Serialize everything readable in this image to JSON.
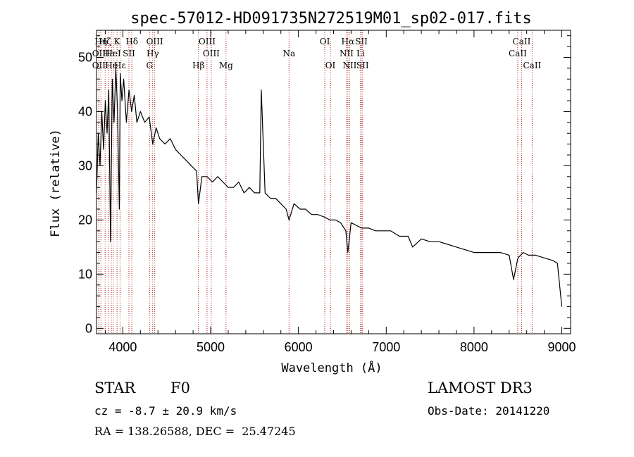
{
  "chart_data": {
    "type": "line",
    "title": "spec-57012-HD091735N272519M01_sp02-017.fits",
    "xlabel": "Wavelength (Å)",
    "ylabel": "Flux (relative)",
    "xlim": [
      3700,
      9100
    ],
    "ylim": [
      -1,
      55
    ],
    "xticks": [
      4000,
      5000,
      6000,
      7000,
      8000,
      9000
    ],
    "yticks": [
      0,
      10,
      20,
      30,
      40,
      50
    ],
    "series": [
      {
        "name": "flux",
        "x": [
          3700,
          3720,
          3740,
          3760,
          3780,
          3800,
          3820,
          3840,
          3860,
          3880,
          3900,
          3920,
          3940,
          3960,
          3970,
          3990,
          4010,
          4040,
          4070,
          4100,
          4130,
          4160,
          4200,
          4250,
          4300,
          4340,
          4380,
          4420,
          4480,
          4540,
          4600,
          4660,
          4720,
          4780,
          4840,
          4861,
          4900,
          4960,
          5020,
          5080,
          5140,
          5200,
          5260,
          5320,
          5380,
          5440,
          5500,
          5560,
          5577,
          5620,
          5680,
          5740,
          5800,
          5860,
          5893,
          5950,
          6020,
          6080,
          6150,
          6220,
          6300,
          6360,
          6420,
          6480,
          6540,
          6563,
          6600,
          6660,
          6720,
          6800,
          6880,
          6960,
          7050,
          7150,
          7250,
          7300,
          7400,
          7500,
          7600,
          7700,
          7800,
          7900,
          8000,
          8100,
          8200,
          8300,
          8400,
          8450,
          8500,
          8560,
          8620,
          8700,
          8800,
          8900,
          8950,
          9000
        ],
        "values": [
          25,
          36,
          30,
          40,
          33,
          42,
          36,
          44,
          16,
          46,
          38,
          48,
          40,
          22,
          47,
          42,
          46,
          38,
          44,
          40,
          43,
          38,
          40,
          38,
          39,
          34,
          37,
          35,
          34,
          35,
          33,
          32,
          31,
          30,
          29,
          23,
          28,
          28,
          27,
          28,
          27,
          26,
          26,
          27,
          25,
          26,
          25,
          25,
          44,
          25,
          24,
          24,
          23,
          22,
          20,
          23,
          22,
          22,
          21,
          21,
          20.5,
          20,
          20,
          19.5,
          18,
          14,
          19.5,
          19,
          18.5,
          18.5,
          18,
          18,
          18,
          17,
          17,
          15,
          16.5,
          16,
          16,
          15.5,
          15,
          14.5,
          14,
          14,
          14,
          14,
          13.5,
          9,
          13,
          14,
          13.5,
          13.5,
          13,
          12.5,
          12,
          4
        ]
      }
    ],
    "line_markers": [
      {
        "wl": 3750,
        "label": "Hη",
        "row": 0
      },
      {
        "wl": 3727,
        "label": "OII",
        "row": 1
      },
      {
        "wl": 3727,
        "label": "OII",
        "row": 2
      },
      {
        "wl": 3798,
        "label": "Hζ",
        "row": 0
      },
      {
        "wl": 3835,
        "label": "Hε",
        "row": 1
      },
      {
        "wl": 3869,
        "label": "He",
        "row": 2
      },
      {
        "wl": 3934,
        "label": "K",
        "row": 0
      },
      {
        "wl": 3889,
        "label": "HeI",
        "row": 1
      },
      {
        "wl": 3968,
        "label": "Hε",
        "row": 2
      },
      {
        "wl": 4102,
        "label": "Hδ",
        "row": 0
      },
      {
        "wl": 4069,
        "label": "SII",
        "row": 1
      },
      {
        "wl": 4363,
        "label": "OIII",
        "row": 0
      },
      {
        "wl": 4340,
        "label": "Hγ",
        "row": 1
      },
      {
        "wl": 4304,
        "label": "G",
        "row": 2
      },
      {
        "wl": 4861,
        "label": "Hβ",
        "row": 2
      },
      {
        "wl": 4959,
        "label": "OIII",
        "row": 0
      },
      {
        "wl": 5007,
        "label": "OIII",
        "row": 1
      },
      {
        "wl": 5175,
        "label": "Mg",
        "row": 2
      },
      {
        "wl": 5893,
        "label": "Na",
        "row": 1
      },
      {
        "wl": 6300,
        "label": "OI",
        "row": 0
      },
      {
        "wl": 6364,
        "label": "OI",
        "row": 2
      },
      {
        "wl": 6563,
        "label": "Hα",
        "row": 0
      },
      {
        "wl": 6548,
        "label": "NII",
        "row": 1
      },
      {
        "wl": 6584,
        "label": "NII",
        "row": 2
      },
      {
        "wl": 6717,
        "label": "SII",
        "row": 0
      },
      {
        "wl": 6708,
        "label": "Li",
        "row": 1
      },
      {
        "wl": 6731,
        "label": "SII",
        "row": 2
      },
      {
        "wl": 8542,
        "label": "CaII",
        "row": 0
      },
      {
        "wl": 8498,
        "label": "CaII",
        "row": 1
      },
      {
        "wl": 8662,
        "label": "CaII",
        "row": 2
      }
    ]
  },
  "info": {
    "class_label": "STAR",
    "subclass": "F0",
    "cz": "cz = -8.7 ± 20.9 km/s",
    "radec": "RA = 138.26588, DEC =  25.47245",
    "survey": "LAMOST DR3",
    "obs_date": "Obs-Date: 20141220"
  }
}
